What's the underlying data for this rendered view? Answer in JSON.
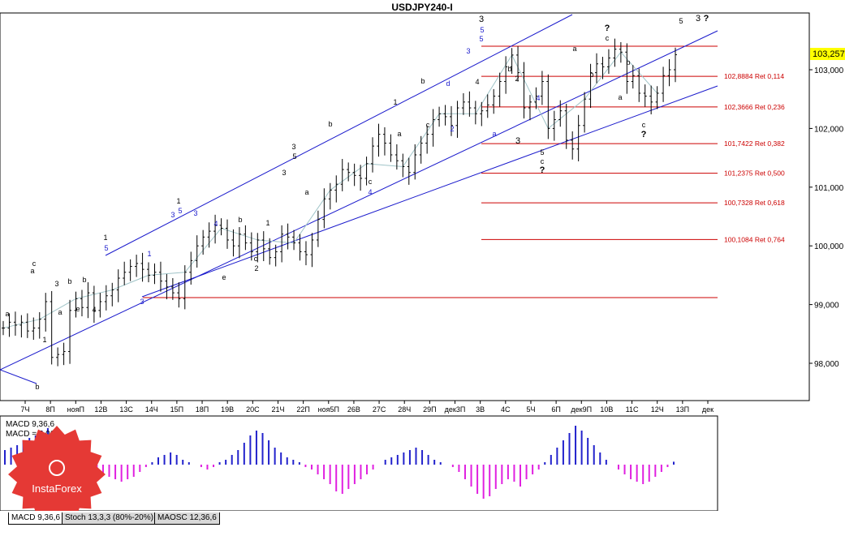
{
  "chart_data": {
    "type": "candlestick",
    "title": "USDJPY240-I",
    "price_label": "103,257",
    "y_ticks": [
      "103,000",
      "102,000",
      "101,000",
      "100,000",
      "99,000",
      "98,000"
    ],
    "x_ticks": [
      "7Ч",
      "8П",
      "нояП",
      "12В",
      "13С",
      "14Ч",
      "15П",
      "18П",
      "19В",
      "20С",
      "21Ч",
      "22П",
      "ноя5П",
      "26В",
      "27С",
      "28Ч",
      "29П",
      "дек3П",
      "3В",
      "4С",
      "5Ч",
      "6П",
      "дек9П",
      "10В",
      "11С",
      "12Ч",
      "13П",
      "дек"
    ],
    "fib_levels": [
      {
        "price": 102.8884,
        "label": "102,8884 Ret 0,114"
      },
      {
        "price": 102.3666,
        "label": "102,3666 Ret 0,236"
      },
      {
        "price": 101.7422,
        "label": "101,7422 Ret 0,382"
      },
      {
        "price": 101.2375,
        "label": "101,2375 Ret 0,500"
      },
      {
        "price": 100.7328,
        "label": "100,7328 Ret 0,618"
      },
      {
        "price": 100.1084,
        "label": "100,1084 Ret 0,764"
      }
    ],
    "wave_labels": [
      "a",
      "b",
      "c",
      "d",
      "e",
      "1",
      "2",
      "3",
      "4",
      "5",
      "?"
    ],
    "close_series": [
      98.6,
      98.7,
      98.65,
      98.7,
      98.55,
      98.6,
      98.75,
      99.05,
      98.1,
      98.15,
      98.2,
      98.9,
      99.1,
      98.95,
      99.2,
      98.9,
      99.05,
      99.15,
      99.25,
      99.45,
      99.55,
      99.65,
      99.7,
      99.6,
      99.5,
      99.55,
      99.4,
      99.3,
      99.2,
      99.1,
      99.55,
      99.75,
      100.0,
      100.15,
      100.25,
      100.35,
      100.3,
      100.1,
      100.0,
      100.2,
      100.05,
      99.9,
      100.1,
      99.95,
      99.8,
      99.9,
      100.2,
      100.15,
      100.05,
      99.9,
      99.85,
      100.1,
      100.45,
      100.8,
      100.95,
      101.05,
      101.3,
      101.25,
      101.2,
      101.15,
      101.4,
      101.7,
      101.9,
      101.75,
      101.55,
      101.45,
      101.35,
      101.25,
      101.55,
      101.75,
      101.9,
      102.15,
      102.25,
      102.2,
      102.05,
      102.35,
      102.45,
      102.35,
      102.25,
      102.3,
      102.4,
      102.55,
      102.8,
      103.05,
      103.25,
      102.95,
      102.35,
      102.45,
      102.55,
      102.8,
      102.0,
      102.15,
      102.3,
      101.8,
      101.65,
      102.05,
      102.5,
      102.95,
      103.1,
      103.05,
      103.2,
      103.35,
      103.3,
      102.8,
      102.9,
      102.6,
      102.55,
      102.45,
      102.6,
      102.9,
      103.0,
      103.257
    ],
    "macd_label": "MACD 9,36,6",
    "macd_value_label": "MACD = 0,06",
    "macd_values": [
      0.3,
      0.35,
      0.4,
      0.5,
      0.55,
      0.6,
      0.7,
      0.75,
      0.7,
      0.65,
      0.5,
      0.3,
      0.15,
      0.05,
      -0.05,
      -0.15,
      -0.2,
      -0.25,
      -0.3,
      -0.35,
      -0.3,
      -0.25,
      -0.15,
      -0.05,
      0.05,
      0.15,
      0.2,
      0.25,
      0.2,
      0.1,
      0.05,
      0.0,
      -0.05,
      -0.1,
      -0.05,
      0.05,
      0.1,
      0.2,
      0.3,
      0.45,
      0.6,
      0.7,
      0.65,
      0.5,
      0.35,
      0.25,
      0.15,
      0.1,
      0.05,
      -0.05,
      -0.1,
      -0.2,
      -0.3,
      -0.4,
      -0.55,
      -0.6,
      -0.5,
      -0.4,
      -0.3,
      -0.2,
      -0.1,
      0.0,
      0.1,
      0.15,
      0.2,
      0.25,
      0.3,
      0.35,
      0.3,
      0.2,
      0.1,
      0.05,
      0.0,
      -0.05,
      -0.15,
      -0.3,
      -0.45,
      -0.6,
      -0.7,
      -0.65,
      -0.5,
      -0.4,
      -0.3,
      -0.35,
      -0.45,
      -0.3,
      -0.2,
      -0.1,
      0.05,
      0.2,
      0.35,
      0.5,
      0.65,
      0.8,
      0.7,
      0.55,
      0.4,
      0.25,
      0.1,
      0.0,
      -0.1,
      -0.2,
      -0.3,
      -0.35,
      -0.4,
      -0.35,
      -0.25,
      -0.15,
      -0.05,
      0.06
    ]
  },
  "logo": {
    "text": "InstaForex"
  },
  "tabs": [
    "MACD 9,36,6",
    "Stoch 13,3,3 (80%-20%)",
    "MAOSC 12,36,6"
  ]
}
